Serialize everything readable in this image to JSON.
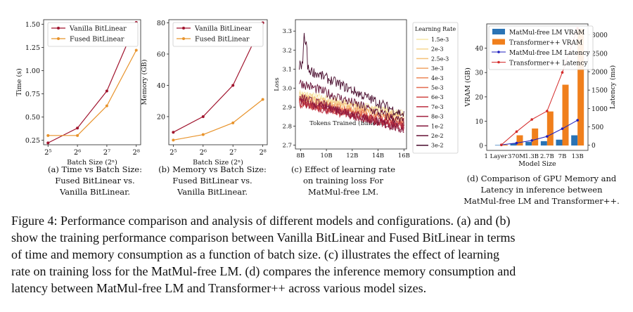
{
  "colors": {
    "vanilla": "#a0132d",
    "fused": "#e8932b",
    "mm_bar": "#2a73b5",
    "tpp_bar": "#f07f1c",
    "mm_lat": "#1f1fbf",
    "tpp_lat": "#d42a2a"
  },
  "panels": {
    "a": {
      "caption": [
        "(a) Time vs Batch Size:",
        "Fused BitLinear vs.",
        "Vanilla BitLinear."
      ],
      "xlabel": "Batch Size (2ⁿ)",
      "ylabel": "Time (s)",
      "xtick_labels": [
        "2⁵",
        "2⁶",
        "2⁷",
        "2⁸"
      ],
      "ytick_labels": [
        "0.25",
        "0.50",
        "0.75",
        "1.00",
        "1.25",
        "1.50"
      ]
    },
    "b": {
      "caption": [
        "(b) Memory vs Batch Size:",
        "Fused BitLinear vs.",
        "Vanilla BitLinear."
      ],
      "xlabel": "Batch Size (2ⁿ)",
      "ylabel": "Memory (GB)",
      "xtick_labels": [
        "2⁵",
        "2⁶",
        "2⁷",
        "2⁸"
      ],
      "ytick_labels": [
        "20",
        "40",
        "60",
        "80"
      ]
    },
    "c": {
      "caption": [
        "(c) Effect of learning rate",
        "on training loss For",
        "MatMul-free LM."
      ],
      "xlabel": "Tokens Trained (Billions)",
      "ylabel": "Loss",
      "xtick_labels": [
        "8B",
        "10B",
        "12B",
        "14B",
        "16B"
      ],
      "ytick_labels": [
        "2.7",
        "2.8",
        "2.9",
        "3.0",
        "3.1",
        "3.2",
        "3.3"
      ],
      "legend_title": "Learning Rate"
    },
    "d": {
      "caption": [
        "(d) Comparison of GPU Memory and",
        "Latency in inference between",
        "MatMul-free LM and Transformer++."
      ],
      "xlabel": "Model Size",
      "ylabel_left": "VRAM (GB)",
      "ylabel_right": "Latency (ms)",
      "ytick_labels_left": [
        "0",
        "10",
        "20",
        "30",
        "40"
      ],
      "ytick_labels_right": [
        "0",
        "500",
        "1000",
        "1500",
        "2000",
        "2500",
        "3000"
      ]
    }
  },
  "chart_data": [
    {
      "type": "line",
      "xlabel": "Batch Size (2ⁿ)",
      "ylabel": "Time (s)",
      "x": [
        32,
        64,
        128,
        256
      ],
      "xscale": "log2",
      "ylim": [
        0.2,
        1.55
      ],
      "grid": false,
      "legend": "top-left",
      "series": [
        {
          "name": "Vanilla BitLinear",
          "values": [
            0.22,
            0.38,
            0.78,
            1.52
          ]
        },
        {
          "name": "Fused BitLinear",
          "values": [
            0.3,
            0.3,
            0.62,
            1.22
          ]
        }
      ]
    },
    {
      "type": "line",
      "xlabel": "Batch Size (2ⁿ)",
      "ylabel": "Memory (GB)",
      "x": [
        32,
        64,
        128,
        256
      ],
      "xscale": "log2",
      "ylim": [
        2,
        82
      ],
      "grid": false,
      "legend": "top-left",
      "series": [
        {
          "name": "Vanilla BitLinear",
          "values": [
            10,
            20,
            40,
            80
          ]
        },
        {
          "name": "Fused BitLinear",
          "values": [
            5,
            8.5,
            16,
            31
          ]
        }
      ]
    },
    {
      "type": "line",
      "xlabel": "Tokens Trained (Billions)",
      "ylabel": "Loss",
      "xlim": [
        7.6,
        16.2
      ],
      "ylim": [
        2.68,
        3.36
      ],
      "grid": false,
      "legend": "outside-right",
      "legend_title": "Learning Rate",
      "series": [
        {
          "name": "1.5e-3",
          "values": [
            2.975,
            2.865
          ]
        },
        {
          "name": "2e-3",
          "values": [
            2.965,
            2.855
          ]
        },
        {
          "name": "2.5e-3",
          "values": [
            2.955,
            2.845
          ]
        },
        {
          "name": "3e-3",
          "values": [
            2.945,
            2.835
          ]
        },
        {
          "name": "4e-3",
          "values": [
            2.935,
            2.825
          ]
        },
        {
          "name": "5e-3",
          "values": [
            2.928,
            2.815
          ]
        },
        {
          "name": "6e-3",
          "values": [
            2.922,
            2.805
          ]
        },
        {
          "name": "7e-3",
          "values": [
            2.918,
            2.795
          ]
        },
        {
          "name": "8e-3",
          "values": [
            2.93,
            2.79
          ]
        },
        {
          "name": "1e-2",
          "values": [
            2.95,
            2.78
          ]
        },
        {
          "name": "2e-2",
          "values": [
            3.03,
            2.82
          ]
        },
        {
          "name": "3e-2",
          "values": [
            3.12,
            2.86
          ]
        }
      ]
    },
    {
      "type": "bar",
      "xlabel": "Model Size",
      "ylabel": "VRAM (GB)",
      "ylabel_right": "Latency (ms)",
      "categories": [
        "1 Layer",
        "370M",
        "1.3B",
        "2.7B",
        "7B",
        "13B"
      ],
      "ylim": [
        -2,
        50
      ],
      "ylim_right": [
        -140,
        3300
      ],
      "grid": false,
      "legend": "top-left",
      "series": [
        {
          "name": "MatMul-free LM VRAM",
          "kind": "bar",
          "axis": "left",
          "values": [
            0.2,
            0.9,
            1.5,
            1.8,
            2.4,
            4.2
          ]
        },
        {
          "name": "Transformer++ VRAM",
          "kind": "bar",
          "axis": "left",
          "values": [
            0.3,
            4.2,
            7.0,
            14.0,
            25.0,
            48.0
          ]
        },
        {
          "name": "MatMul-free LM Latency",
          "kind": "line",
          "axis": "right",
          "values": [
            10,
            60,
            130,
            240,
            450,
            680
          ]
        },
        {
          "name": "Transformer++ Latency",
          "kind": "line",
          "axis": "right",
          "values": [
            10,
            370,
            700,
            930,
            1980,
            3180
          ]
        }
      ]
    }
  ],
  "caption": {
    "lines": [
      "Figure 4: Performance comparison and analysis of different models and configurations. (a) and (b)",
      "show the training performance comparison between Vanilla BitLinear and Fused BitLinear in terms",
      "of time and memory consumption as a function of batch size. (c) illustrates the effect of learning",
      "rate on training loss for the MatMul-free LM. (d) compares the inference memory consumption and",
      "latency between MatMul-free LM and Transformer++ across various model sizes."
    ]
  }
}
